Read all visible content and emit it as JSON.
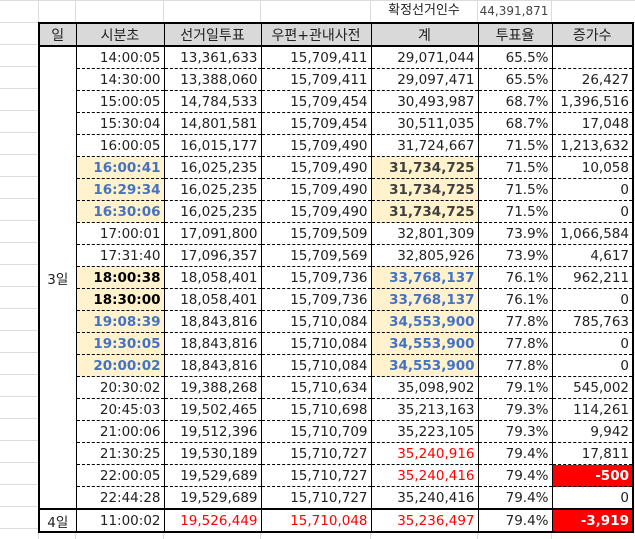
{
  "top": {
    "label": "확정선거인수",
    "value": "44,391,871"
  },
  "headers": [
    "일",
    "시분초",
    "선거일투표",
    "우편+관내사전",
    "계",
    "투표율",
    "증가수"
  ],
  "colors": {
    "highlight_bg": "#fff2cc",
    "blue": "#4472c4",
    "red": "#ff0000",
    "header_bg": "#d9d9d9"
  },
  "groups": [
    {
      "day": "3일",
      "rows": [
        {
          "time": "14:00:05",
          "eday": "13,361,633",
          "early": "15,709,411",
          "total": "29,071,044",
          "rate": "65.5%",
          "inc": ""
        },
        {
          "time": "14:30:00",
          "eday": "13,388,060",
          "early": "15,709,411",
          "total": "29,097,471",
          "rate": "65.5%",
          "inc": "26,427"
        },
        {
          "time": "15:00:05",
          "eday": "14,784,533",
          "early": "15,709,454",
          "total": "30,493,987",
          "rate": "68.7%",
          "inc": "1,396,516"
        },
        {
          "time": "15:30:04",
          "eday": "14,801,581",
          "early": "15,709,454",
          "total": "30,511,035",
          "rate": "68.7%",
          "inc": "17,048"
        },
        {
          "time": "16:00:05",
          "eday": "16,015,177",
          "early": "15,709,490",
          "total": "31,724,667",
          "rate": "71.5%",
          "inc": "1,213,632"
        },
        {
          "time": "16:00:41",
          "eday": "16,025,235",
          "early": "15,709,490",
          "total": "31,734,725",
          "rate": "71.5%",
          "inc": "10,058",
          "time_style": "blue",
          "total_style": "dark"
        },
        {
          "time": "16:29:34",
          "eday": "16,025,235",
          "early": "15,709,490",
          "total": "31,734,725",
          "rate": "71.5%",
          "inc": "0",
          "time_style": "blue",
          "total_style": "dark"
        },
        {
          "time": "16:30:06",
          "eday": "16,025,235",
          "early": "15,709,490",
          "total": "31,734,725",
          "rate": "71.5%",
          "inc": "0",
          "time_style": "blue",
          "total_style": "dark"
        },
        {
          "time": "17:00:01",
          "eday": "17,091,800",
          "early": "15,709,509",
          "total": "32,801,309",
          "rate": "73.9%",
          "inc": "1,066,584"
        },
        {
          "time": "17:31:40",
          "eday": "17,096,357",
          "early": "15,709,569",
          "total": "32,805,926",
          "rate": "73.9%",
          "inc": "4,617"
        },
        {
          "time": "18:00:38",
          "eday": "18,058,401",
          "early": "15,709,736",
          "total": "33,768,137",
          "rate": "76.1%",
          "inc": "962,211",
          "time_style": "bold",
          "total_style": "blue"
        },
        {
          "time": "18:30:00",
          "eday": "18,058,401",
          "early": "15,709,736",
          "total": "33,768,137",
          "rate": "76.1%",
          "inc": "0",
          "time_style": "bold",
          "total_style": "blue"
        },
        {
          "time": "19:08:39",
          "eday": "18,843,816",
          "early": "15,710,084",
          "total": "34,553,900",
          "rate": "77.8%",
          "inc": "785,763",
          "time_style": "blue",
          "total_style": "blue"
        },
        {
          "time": "19:30:05",
          "eday": "18,843,816",
          "early": "15,710,084",
          "total": "34,553,900",
          "rate": "77.8%",
          "inc": "0",
          "time_style": "blue",
          "total_style": "blue"
        },
        {
          "time": "20:00:02",
          "eday": "18,843,816",
          "early": "15,710,084",
          "total": "34,553,900",
          "rate": "77.8%",
          "inc": "0",
          "time_style": "blue",
          "total_style": "blue"
        },
        {
          "time": "20:30:02",
          "eday": "19,388,268",
          "early": "15,710,634",
          "total": "35,098,902",
          "rate": "79.1%",
          "inc": "545,002"
        },
        {
          "time": "20:45:03",
          "eday": "19,502,465",
          "early": "15,710,698",
          "total": "35,213,163",
          "rate": "79.3%",
          "inc": "114,261"
        },
        {
          "time": "21:00:06",
          "eday": "19,512,396",
          "early": "15,710,709",
          "total": "35,223,105",
          "rate": "79.3%",
          "inc": "9,942"
        },
        {
          "time": "21:30:25",
          "eday": "19,530,189",
          "early": "15,710,727",
          "total": "35,240,916",
          "rate": "79.4%",
          "inc": "17,811",
          "total_style": "red"
        },
        {
          "time": "22:00:05",
          "eday": "19,529,689",
          "early": "15,710,727",
          "total": "35,240,416",
          "rate": "79.4%",
          "inc": "-500",
          "total_style": "red",
          "inc_style": "redbg"
        },
        {
          "time": "22:44:28",
          "eday": "19,529,689",
          "early": "15,710,727",
          "total": "35,240,416",
          "rate": "79.4%",
          "inc": "0"
        }
      ]
    },
    {
      "day": "4일",
      "rows": [
        {
          "time": "11:00:02",
          "eday": "19,526,449",
          "early": "15,710,048",
          "total": "35,236,497",
          "rate": "79.4%",
          "inc": "-3,919",
          "eday_style": "red",
          "early_style": "red",
          "total_style": "red",
          "inc_style": "redbg"
        }
      ]
    }
  ]
}
